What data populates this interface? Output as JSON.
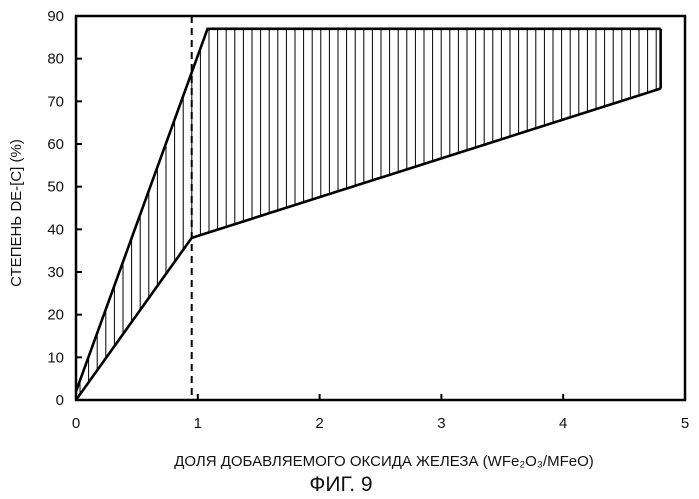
{
  "chart_data": {
    "type": "area",
    "xlabel": "ДОЛЯ ДОБАВЛЯЕМОГО ОКСИДА ЖЕЛЕЗА (WFe₂O₃/MFeO)",
    "ylabel": "СТЕПЕНЬ DE-[C] (%)",
    "caption": "ФИГ. 9",
    "xlim": [
      0,
      5
    ],
    "ylim": [
      0,
      90
    ],
    "xticks": [
      0,
      1,
      2,
      3,
      4,
      5
    ],
    "yticks": [
      0,
      10,
      20,
      30,
      40,
      50,
      60,
      70,
      80,
      90
    ],
    "grid": false,
    "series": [
      {
        "role": "upper",
        "x": [
          0,
          1.08,
          4.8
        ],
        "y": [
          2,
          87,
          87
        ]
      },
      {
        "role": "lower",
        "x": [
          0,
          0.95,
          4.8
        ],
        "y": [
          0,
          38,
          73
        ]
      }
    ],
    "reference_line": {
      "x": 0.95,
      "style": "dashed"
    },
    "fill": "vertical-hatch"
  }
}
